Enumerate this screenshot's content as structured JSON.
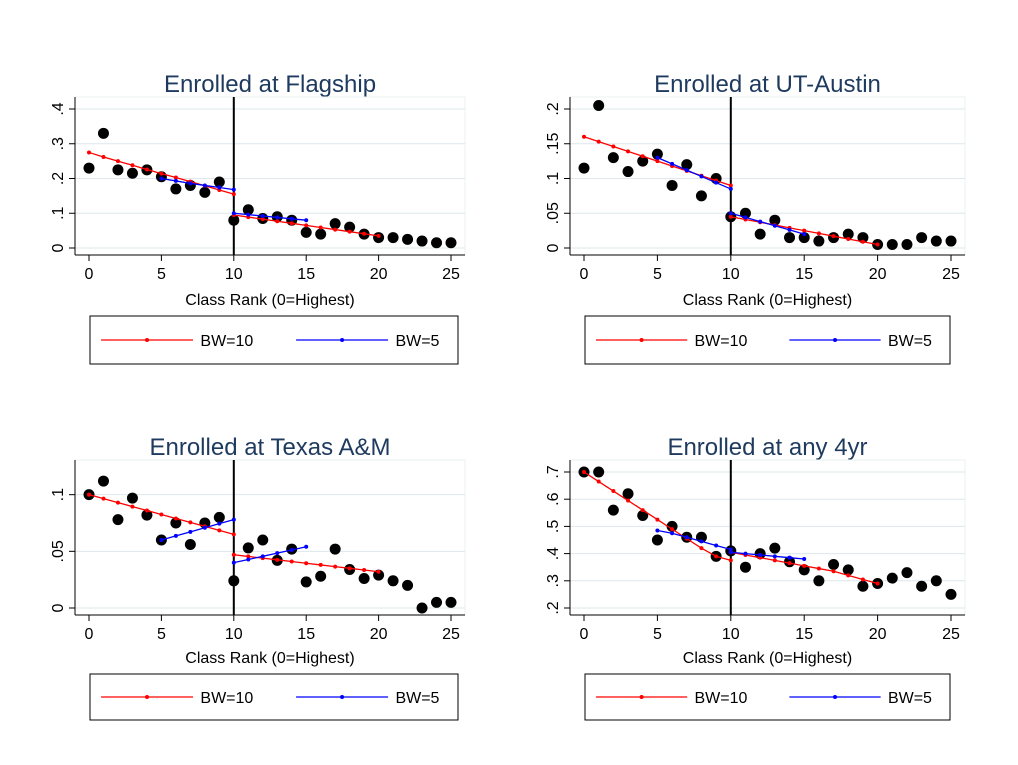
{
  "figure": {
    "xlabel": "Class Rank (0=Highest)",
    "cutoff": 10,
    "legend": {
      "bw10": "BW=10",
      "bw5": "BW=5"
    },
    "colors": {
      "bw10": "#ff0000",
      "bw5": "#0000ff",
      "dots": "#000000",
      "grid": "#dde7ed"
    }
  },
  "chart_data": [
    {
      "type": "scatter",
      "title": "Enrolled at Flagship",
      "xlabel": "Class Rank (0=Highest)",
      "ylabel": "",
      "xlim": [
        0,
        25
      ],
      "ylim": [
        0,
        0.4
      ],
      "xticks": [
        0,
        5,
        10,
        15,
        20,
        25
      ],
      "yticks": [
        0,
        0.1,
        0.2,
        0.3,
        0.4
      ],
      "yticklabels": [
        "0",
        ".1",
        ".2",
        ".3",
        ".4"
      ],
      "grid": true,
      "legend_position": "bottom",
      "cutoff": 10,
      "x": [
        0,
        1,
        2,
        3,
        4,
        5,
        6,
        7,
        8,
        9,
        10,
        11,
        12,
        13,
        14,
        15,
        16,
        17,
        18,
        19,
        20,
        21,
        22,
        23,
        24,
        25
      ],
      "y": [
        0.23,
        0.33,
        0.225,
        0.215,
        0.225,
        0.205,
        0.17,
        0.18,
        0.16,
        0.19,
        0.08,
        0.11,
        0.085,
        0.09,
        0.08,
        0.045,
        0.04,
        0.07,
        0.06,
        0.04,
        0.03,
        0.03,
        0.025,
        0.02,
        0.015,
        0.015
      ],
      "series": [
        {
          "name": "BW=10",
          "x": [
            0,
            1,
            2,
            3,
            4,
            5,
            6,
            7,
            8,
            9,
            10
          ],
          "values": [
            0.275,
            0.262,
            0.25,
            0.238,
            0.226,
            0.214,
            0.203,
            0.191,
            0.179,
            0.167,
            0.155
          ]
        },
        {
          "name": "BW=10",
          "x": [
            10,
            11,
            12,
            13,
            14,
            15,
            16,
            17,
            18,
            19,
            20
          ],
          "values": [
            0.095,
            0.089,
            0.083,
            0.077,
            0.071,
            0.065,
            0.059,
            0.053,
            0.047,
            0.041,
            0.035
          ]
        },
        {
          "name": "BW=5",
          "x": [
            5,
            6,
            7,
            8,
            9,
            10
          ],
          "values": [
            0.2,
            0.193,
            0.186,
            0.18,
            0.174,
            0.168
          ]
        },
        {
          "name": "BW=5",
          "x": [
            10,
            11,
            12,
            13,
            14,
            15
          ],
          "values": [
            0.1,
            0.096,
            0.092,
            0.088,
            0.084,
            0.08
          ]
        }
      ]
    },
    {
      "type": "scatter",
      "title": "Enrolled at UT-Austin",
      "xlabel": "Class Rank (0=Highest)",
      "ylabel": "",
      "xlim": [
        0,
        25
      ],
      "ylim": [
        0,
        0.2
      ],
      "xticks": [
        0,
        5,
        10,
        15,
        20,
        25
      ],
      "yticks": [
        0,
        0.05,
        0.1,
        0.15,
        0.2
      ],
      "yticklabels": [
        "0",
        ".05",
        ".1",
        ".15",
        ".2"
      ],
      "grid": true,
      "legend_position": "bottom",
      "cutoff": 10,
      "x": [
        0,
        1,
        2,
        3,
        4,
        5,
        6,
        7,
        8,
        9,
        10,
        11,
        12,
        13,
        14,
        15,
        16,
        17,
        18,
        19,
        20,
        21,
        22,
        23,
        24,
        25
      ],
      "y": [
        0.115,
        0.205,
        0.13,
        0.11,
        0.125,
        0.135,
        0.09,
        0.12,
        0.075,
        0.1,
        0.045,
        0.05,
        0.02,
        0.04,
        0.015,
        0.015,
        0.01,
        0.015,
        0.02,
        0.015,
        0.005,
        0.005,
        0.005,
        0.015,
        0.01,
        0.01
      ],
      "series": [
        {
          "name": "BW=10",
          "x": [
            0,
            1,
            2,
            3,
            4,
            5,
            6,
            7,
            8,
            9,
            10
          ],
          "values": [
            0.16,
            0.153,
            0.146,
            0.139,
            0.132,
            0.125,
            0.118,
            0.111,
            0.104,
            0.097,
            0.09
          ]
        },
        {
          "name": "BW=10",
          "x": [
            10,
            11,
            12,
            13,
            14,
            15,
            16,
            17,
            18,
            19,
            20
          ],
          "values": [
            0.045,
            0.041,
            0.037,
            0.033,
            0.029,
            0.025,
            0.021,
            0.017,
            0.013,
            0.009,
            0.005
          ]
        },
        {
          "name": "BW=5",
          "x": [
            5,
            6,
            7,
            8,
            9,
            10
          ],
          "values": [
            0.13,
            0.121,
            0.112,
            0.103,
            0.094,
            0.085
          ]
        },
        {
          "name": "BW=5",
          "x": [
            10,
            11,
            12,
            13,
            14,
            15
          ],
          "values": [
            0.05,
            0.044,
            0.038,
            0.032,
            0.026,
            0.02
          ]
        }
      ]
    },
    {
      "type": "scatter",
      "title": "Enrolled at Texas A&M",
      "xlabel": "Class Rank (0=Highest)",
      "ylabel": "",
      "xlim": [
        0,
        25
      ],
      "ylim": [
        0,
        0.12
      ],
      "xticks": [
        0,
        5,
        10,
        15,
        20,
        25
      ],
      "yticks": [
        0,
        0.05,
        0.1
      ],
      "yticklabels": [
        "0",
        ".05",
        ".1"
      ],
      "grid": true,
      "legend_position": "bottom",
      "cutoff": 10,
      "x": [
        0,
        1,
        2,
        3,
        4,
        5,
        6,
        7,
        8,
        9,
        10,
        11,
        12,
        13,
        14,
        15,
        16,
        17,
        18,
        19,
        20,
        21,
        22,
        23,
        24,
        25
      ],
      "y": [
        0.1,
        0.112,
        0.078,
        0.097,
        0.082,
        0.06,
        0.075,
        0.056,
        0.075,
        0.08,
        0.024,
        0.053,
        0.06,
        0.042,
        0.052,
        0.023,
        0.028,
        0.052,
        0.034,
        0.026,
        0.029,
        0.024,
        0.02,
        0,
        0.005,
        0.005
      ],
      "series": [
        {
          "name": "BW=10",
          "x": [
            0,
            1,
            2,
            3,
            4,
            5,
            6,
            7,
            8,
            9,
            10
          ],
          "values": [
            0.1,
            0.0965,
            0.093,
            0.0895,
            0.086,
            0.0825,
            0.079,
            0.0755,
            0.072,
            0.0685,
            0.065
          ]
        },
        {
          "name": "BW=10",
          "x": [
            10,
            11,
            12,
            13,
            14,
            15,
            16,
            17,
            18,
            19,
            20
          ],
          "values": [
            0.047,
            0.0455,
            0.044,
            0.0425,
            0.041,
            0.0395,
            0.038,
            0.0365,
            0.035,
            0.0335,
            0.032
          ]
        },
        {
          "name": "BW=5",
          "x": [
            5,
            6,
            7,
            8,
            9,
            10
          ],
          "values": [
            0.06,
            0.0636,
            0.0672,
            0.0708,
            0.0744,
            0.078
          ]
        },
        {
          "name": "BW=5",
          "x": [
            10,
            11,
            12,
            13,
            14,
            15
          ],
          "values": [
            0.04,
            0.0428,
            0.0456,
            0.0484,
            0.0512,
            0.054
          ]
        }
      ]
    },
    {
      "type": "scatter",
      "title": "Enrolled at any 4yr",
      "xlabel": "Class Rank (0=Highest)",
      "ylabel": "",
      "xlim": [
        0,
        25
      ],
      "ylim": [
        0.2,
        0.7
      ],
      "xticks": [
        0,
        5,
        10,
        15,
        20,
        25
      ],
      "yticks": [
        0.2,
        0.3,
        0.4,
        0.5,
        0.6,
        0.7
      ],
      "yticklabels": [
        ".2",
        ".3",
        ".4",
        ".5",
        ".6",
        ".7"
      ],
      "grid": true,
      "legend_position": "bottom",
      "cutoff": 10,
      "x": [
        0,
        1,
        2,
        3,
        4,
        5,
        6,
        7,
        8,
        9,
        10,
        11,
        12,
        13,
        14,
        15,
        16,
        17,
        18,
        19,
        20,
        21,
        22,
        23,
        24,
        25
      ],
      "y": [
        0.7,
        0.7,
        0.56,
        0.62,
        0.54,
        0.45,
        0.5,
        0.46,
        0.46,
        0.39,
        0.41,
        0.35,
        0.4,
        0.42,
        0.37,
        0.34,
        0.3,
        0.36,
        0.34,
        0.28,
        0.29,
        0.31,
        0.33,
        0.28,
        0.3,
        0.25
      ],
      "series": [
        {
          "name": "BW=10",
          "x": [
            0,
            1,
            2,
            3,
            4,
            5,
            6,
            7,
            8,
            9,
            10
          ],
          "values": [
            0.7,
            0.665,
            0.63,
            0.595,
            0.56,
            0.525,
            0.49,
            0.455,
            0.42,
            0.39,
            0.375
          ]
        },
        {
          "name": "BW=10",
          "x": [
            10,
            11,
            12,
            13,
            14,
            15,
            16,
            17,
            18,
            19,
            20
          ],
          "values": [
            0.405,
            0.395,
            0.385,
            0.375,
            0.365,
            0.355,
            0.345,
            0.335,
            0.32,
            0.305,
            0.29
          ]
        },
        {
          "name": "BW=5",
          "x": [
            5,
            6,
            7,
            8,
            9,
            10
          ],
          "values": [
            0.485,
            0.475,
            0.46,
            0.445,
            0.43,
            0.415
          ]
        },
        {
          "name": "BW=5",
          "x": [
            10,
            11,
            12,
            13,
            14,
            15
          ],
          "values": [
            0.405,
            0.4,
            0.395,
            0.39,
            0.385,
            0.38
          ]
        }
      ]
    }
  ]
}
